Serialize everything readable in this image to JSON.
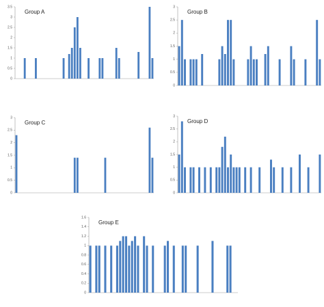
{
  "chart_data": [
    {
      "type": "bar",
      "title": "Group A",
      "color": "#4a7fc1",
      "ylim": [
        0,
        3.5
      ],
      "yticks": [
        0,
        0.5,
        1,
        1.5,
        2,
        2.5,
        3,
        3.5
      ],
      "values": [
        0,
        0,
        0,
        1,
        0,
        0,
        0,
        1,
        0,
        0,
        0,
        0,
        0,
        0,
        0,
        0,
        0,
        1,
        0,
        1.2,
        1.5,
        2.5,
        3,
        1.5,
        0,
        0,
        1,
        0,
        0,
        0,
        1,
        1,
        0,
        0,
        0,
        0,
        1.5,
        1,
        0,
        0,
        0,
        0,
        0,
        0,
        1.3,
        0,
        0,
        0,
        3.5,
        1
      ]
    },
    {
      "type": "bar",
      "title": "Group B",
      "color": "#4a7fc1",
      "ylim": [
        0,
        3
      ],
      "yticks": [
        0,
        0.5,
        1,
        1.5,
        2,
        2.5,
        3
      ],
      "values": [
        1.5,
        2.5,
        1,
        0,
        1,
        1,
        1,
        0,
        1.2,
        0,
        0,
        0,
        0,
        0,
        1,
        1.5,
        1.2,
        2.5,
        2.5,
        1,
        0,
        0,
        0,
        0,
        1,
        1.5,
        1,
        1,
        0,
        0,
        1.2,
        1.5,
        0,
        0,
        0,
        1,
        0,
        0,
        0,
        1.5,
        1,
        0,
        0,
        0,
        1,
        0,
        0,
        0,
        2.5,
        1
      ]
    },
    {
      "type": "bar",
      "title": "Group C",
      "color": "#4a7fc1",
      "ylim": [
        0,
        3
      ],
      "yticks": [
        0,
        0.5,
        1,
        1.5,
        2,
        2.5,
        3
      ],
      "values": [
        2.3,
        0,
        0,
        0,
        0,
        0,
        0,
        0,
        0,
        0,
        0,
        0,
        0,
        0,
        0,
        0,
        0,
        0,
        0,
        0,
        0,
        1.4,
        1.4,
        0,
        0,
        0,
        0,
        0,
        0,
        0,
        0,
        0,
        1.4,
        0,
        0,
        0,
        0,
        0,
        0,
        0,
        0,
        0,
        0,
        0,
        0,
        0,
        0,
        0,
        2.6,
        1.4
      ]
    },
    {
      "type": "bar",
      "title": "Group D",
      "color": "#4a7fc1",
      "ylim": [
        0,
        3
      ],
      "yticks": [
        0,
        0.5,
        1,
        1.5,
        2,
        2.5,
        3
      ],
      "values": [
        1.5,
        2.8,
        1,
        0,
        1,
        1,
        0,
        1,
        0,
        1,
        0,
        1,
        0,
        1,
        1,
        1.8,
        2.2,
        1,
        1.5,
        1,
        1,
        1,
        0,
        1,
        0,
        1,
        0,
        0,
        1,
        0,
        0,
        0,
        1.3,
        1,
        0,
        0,
        1,
        0,
        0,
        1,
        0,
        0,
        1.5,
        0,
        0,
        1,
        0,
        0,
        0,
        1.5
      ]
    },
    {
      "type": "bar",
      "title": "Group E",
      "color": "#4a7fc1",
      "ylim": [
        0,
        1.6
      ],
      "yticks": [
        0,
        0.2,
        0.4,
        0.6,
        0.8,
        1,
        1.2,
        1.4,
        1.6
      ],
      "values": [
        1,
        0,
        1,
        1,
        0,
        1,
        0,
        1,
        0,
        1,
        1.1,
        1.2,
        1.2,
        1,
        1.1,
        1.2,
        1,
        0,
        1.2,
        1,
        0,
        1,
        0,
        0,
        0,
        1,
        1.1,
        0,
        1,
        0,
        0,
        1,
        1,
        0,
        0,
        0,
        1,
        0,
        0,
        0,
        0,
        1.1,
        0,
        0,
        0,
        0,
        1,
        1,
        0,
        0
      ]
    }
  ]
}
